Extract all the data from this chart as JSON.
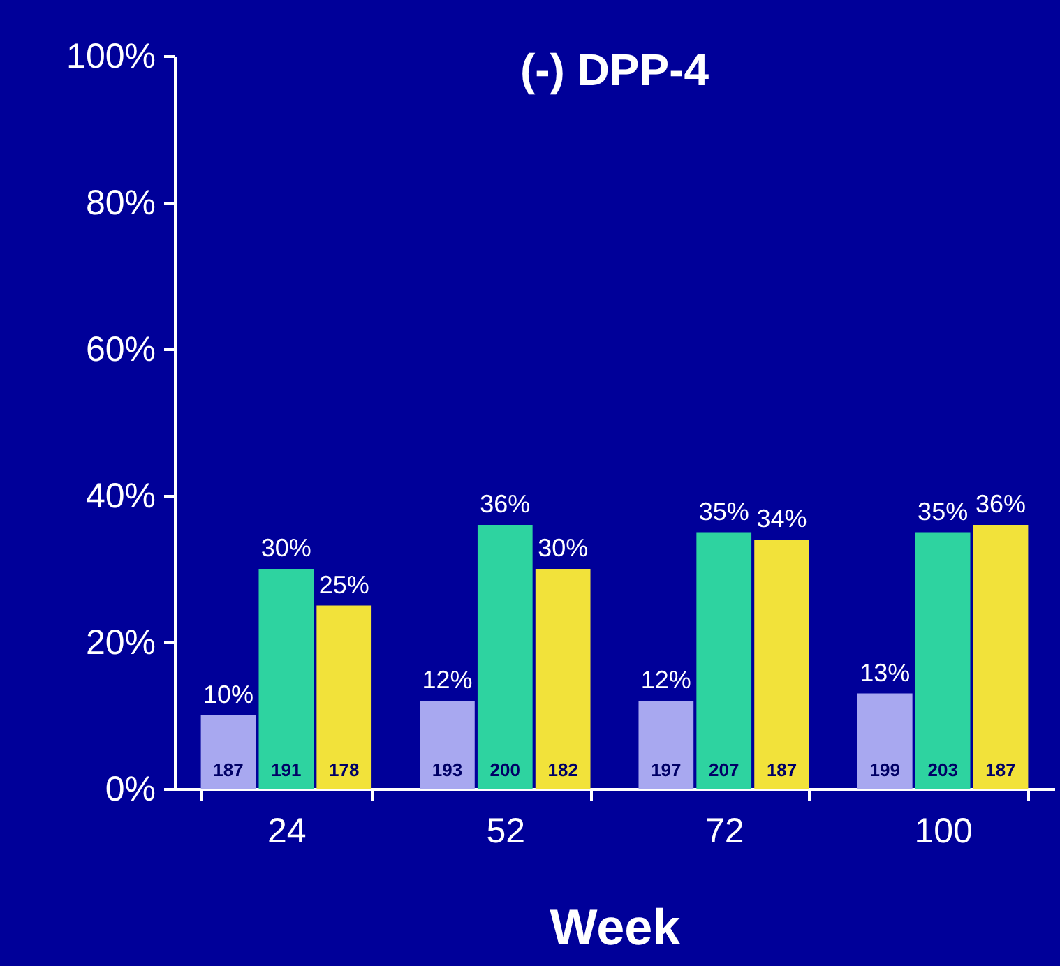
{
  "chart_data": {
    "type": "bar",
    "title": "(-) DPP-4",
    "xlabel": "Week",
    "categories": [
      "24",
      "52",
      "72",
      "100"
    ],
    "series": [
      {
        "color": "#a8a8f0",
        "values": [
          10,
          12,
          12,
          13
        ],
        "value_labels": [
          "10%",
          "12%",
          "12%",
          "13%"
        ]
      },
      {
        "color": "#2ed3a0",
        "values": [
          30,
          36,
          35,
          35
        ],
        "value_labels": [
          "30%",
          "36%",
          "35%",
          "35%"
        ]
      },
      {
        "color": "#f2e23a",
        "values": [
          25,
          30,
          34,
          36
        ],
        "value_labels": [
          "25%",
          "30%",
          "34%",
          "36%"
        ]
      }
    ],
    "ylim": [
      0,
      100
    ],
    "yticks": [
      {
        "value": 0,
        "label": "0%"
      },
      {
        "value": 20,
        "label": "20%"
      },
      {
        "value": 40,
        "label": "40%"
      },
      {
        "value": 60,
        "label": "60%"
      },
      {
        "value": 80,
        "label": "80%"
      },
      {
        "value": 100,
        "label": "100%"
      }
    ],
    "grid": false,
    "legend": false,
    "annotations": [
      {
        "text": "187",
        "x": "24",
        "y": 0
      },
      {
        "text": "191",
        "x": "24",
        "y": 0
      },
      {
        "text": "178",
        "x": "24",
        "y": 0
      },
      {
        "text": "193",
        "x": "52",
        "y": 0
      },
      {
        "text": "200",
        "x": "52",
        "y": 0
      },
      {
        "text": "182",
        "x": "52",
        "y": 0
      },
      {
        "text": "197",
        "x": "72",
        "y": 0
      },
      {
        "text": "207",
        "x": "72",
        "y": 0
      },
      {
        "text": "187",
        "x": "72",
        "y": 0
      },
      {
        "text": "199",
        "x": "100",
        "y": 0
      },
      {
        "text": "203",
        "x": "100",
        "y": 0
      },
      {
        "text": "187",
        "x": "100",
        "y": 0
      }
    ]
  }
}
